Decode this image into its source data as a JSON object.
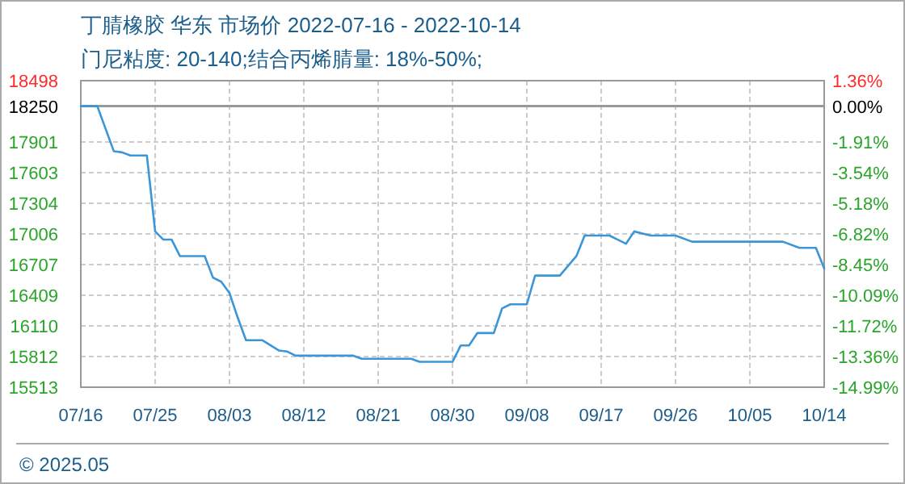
{
  "chart_data": {
    "type": "line",
    "title": "丁腈橡胶 华东 市场价 2022-07-16 - 2022-10-14",
    "subtitle": "门尼粘度: 20-140;结合丙烯腈量: 18%-50%;",
    "annotations": [
      "© 2025.05"
    ],
    "x": [
      "2022-07-16",
      "2022-07-18",
      "2022-07-20",
      "2022-07-21",
      "2022-07-22",
      "2022-07-24",
      "2022-07-25",
      "2022-07-26",
      "2022-07-27",
      "2022-07-28",
      "2022-07-31",
      "2022-08-01",
      "2022-08-02",
      "2022-08-03",
      "2022-08-04",
      "2022-08-05",
      "2022-08-07",
      "2022-08-09",
      "2022-08-10",
      "2022-08-11",
      "2022-08-18",
      "2022-08-19",
      "2022-08-25",
      "2022-08-26",
      "2022-08-30",
      "2022-08-31",
      "2022-09-01",
      "2022-09-02",
      "2022-09-04",
      "2022-09-05",
      "2022-09-06",
      "2022-09-08",
      "2022-09-09",
      "2022-09-12",
      "2022-09-14",
      "2022-09-15",
      "2022-09-18",
      "2022-09-20",
      "2022-09-21",
      "2022-09-22",
      "2022-09-23",
      "2022-09-26",
      "2022-09-28",
      "2022-10-09",
      "2022-10-11",
      "2022-10-13",
      "2022-10-14"
    ],
    "series": [
      {
        "color": "#3a96d8",
        "values": [
          18250,
          18250,
          17810,
          17800,
          17770,
          17770,
          17030,
          16950,
          16950,
          16790,
          16790,
          16580,
          16540,
          16430,
          16190,
          15970,
          15970,
          15870,
          15860,
          15820,
          15820,
          15790,
          15790,
          15760,
          15760,
          15920,
          15920,
          16040,
          16040,
          16280,
          16320,
          16320,
          16600,
          16600,
          16790,
          16990,
          16990,
          16910,
          17030,
          17010,
          16990,
          16990,
          16930,
          16930,
          16870,
          16870,
          16670
        ]
      }
    ],
    "xlim": [
      "2022-07-16",
      "2022-10-14"
    ],
    "xticks": [
      {
        "value": "2022-07-16",
        "label": "07/16"
      },
      {
        "value": "2022-07-25",
        "label": "07/25"
      },
      {
        "value": "2022-08-03",
        "label": "08/03"
      },
      {
        "value": "2022-08-12",
        "label": "08/12"
      },
      {
        "value": "2022-08-21",
        "label": "08/21"
      },
      {
        "value": "2022-08-30",
        "label": "08/30"
      },
      {
        "value": "2022-09-08",
        "label": "09/08"
      },
      {
        "value": "2022-09-17",
        "label": "09/17"
      },
      {
        "value": "2022-09-26",
        "label": "09/26"
      },
      {
        "value": "2022-10-05",
        "label": "10/05"
      },
      {
        "value": "2022-10-14",
        "label": "10/14"
      }
    ],
    "ylim": [
      15513,
      18498
    ],
    "yticks": [
      15513,
      15812,
      16110,
      16409,
      16707,
      17006,
      17304,
      17603,
      17901,
      18250,
      18498
    ],
    "y2lim": [
      -14.99,
      1.36
    ],
    "y2ticks": [
      {
        "value": -14.99,
        "label": "-14.99%"
      },
      {
        "value": -13.36,
        "label": "-13.36%"
      },
      {
        "value": -11.72,
        "label": "-11.72%"
      },
      {
        "value": -10.09,
        "label": "-10.09%"
      },
      {
        "value": -8.45,
        "label": "-8.45%"
      },
      {
        "value": -6.82,
        "label": "-6.82%"
      },
      {
        "value": -5.18,
        "label": "-5.18%"
      },
      {
        "value": -3.54,
        "label": "-3.54%"
      },
      {
        "value": -1.91,
        "label": "-1.91%"
      },
      {
        "value": 0,
        "label": "0.00%"
      },
      {
        "value": 1.36,
        "label": "1.36%"
      }
    ],
    "ref_lines": [
      {
        "axis": "y",
        "value": 18250,
        "color": "#999999"
      }
    ],
    "grid": true,
    "marker": "none",
    "line_style": "solid"
  }
}
